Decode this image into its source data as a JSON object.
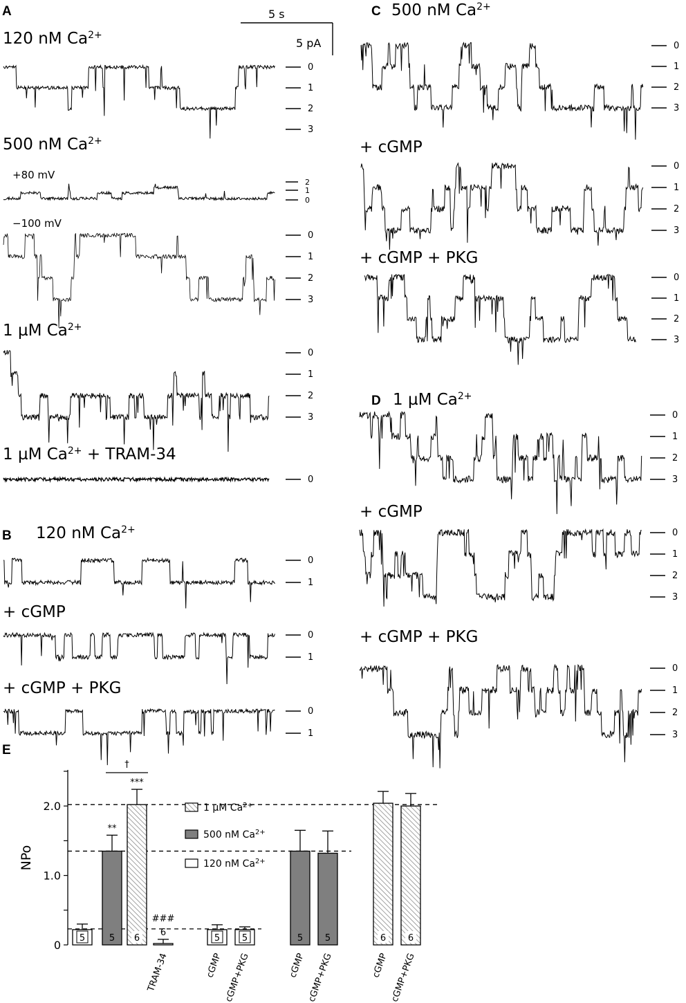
{
  "panels": {
    "A": {
      "letter": "A",
      "scale": {
        "time": "5 s",
        "current": "5 pA"
      },
      "rows": [
        {
          "label": "120 nM Ca",
          "sup": "2+",
          "levels": [
            "0",
            "1",
            "2",
            "3"
          ]
        },
        {
          "label": "500 nM Ca",
          "sup": "2+",
          "sub_rows": [
            {
              "voltage": "+80 mV",
              "levels": [
                "2",
                "1",
                "0"
              ]
            },
            {
              "voltage": "−100 mV",
              "levels": [
                "0",
                "1",
                "2",
                "3"
              ]
            }
          ]
        },
        {
          "label": "1 µM Ca",
          "sup": "2+",
          "levels": [
            "0",
            "1",
            "2",
            "3"
          ]
        },
        {
          "label": "1 µM Ca",
          "sup": "2+",
          "suffix": " + TRAM-34",
          "levels": [
            "0"
          ]
        }
      ]
    },
    "B": {
      "letter": "B",
      "rows": [
        {
          "label": "120 nM Ca",
          "sup": "2+",
          "levels": [
            "0",
            "1"
          ]
        },
        {
          "label": "+ cGMP",
          "levels": [
            "0",
            "1"
          ]
        },
        {
          "label": "+ cGMP + PKG",
          "levels": [
            "0",
            "1"
          ]
        }
      ]
    },
    "C": {
      "letter": "C",
      "rows": [
        {
          "label": "500 nM Ca",
          "sup": "2+",
          "levels": [
            "0",
            "1",
            "2",
            "3"
          ]
        },
        {
          "label": "+ cGMP",
          "levels": [
            "0",
            "1",
            "2",
            "3"
          ]
        },
        {
          "label": "+ cGMP + PKG",
          "levels": [
            "0",
            "1",
            "2",
            "3"
          ]
        }
      ]
    },
    "D": {
      "letter": "D",
      "rows": [
        {
          "label": "1 µM Ca",
          "sup": "2+",
          "levels": [
            "0",
            "1",
            "2",
            "3"
          ]
        },
        {
          "label": "+ cGMP",
          "levels": [
            "0",
            "1",
            "2",
            "3"
          ]
        },
        {
          "label": "+ cGMP + PKG",
          "levels": [
            "0",
            "1",
            "2",
            "3"
          ]
        }
      ]
    },
    "E": {
      "letter": "E"
    }
  },
  "chart_data": {
    "type": "bar",
    "ylabel": "NPo",
    "ylim": [
      0,
      2.5
    ],
    "yticks": [
      "0",
      "1.0",
      "2.0"
    ],
    "reference_lines": [
      0.23,
      1.35,
      2.02
    ],
    "legend": [
      {
        "label": "1 µM Ca",
        "sup": "2+",
        "pattern": "hatched"
      },
      {
        "label": "500 nM Ca",
        "sup": "2+",
        "pattern": "gray"
      },
      {
        "label": "120 nM Ca",
        "sup": "2+",
        "pattern": "white"
      }
    ],
    "bars": [
      {
        "category": "",
        "value": 0.22,
        "error": 0.08,
        "pattern": "white",
        "n": "5"
      },
      {
        "category": "",
        "value": 1.35,
        "error": 0.23,
        "pattern": "gray",
        "n": "5",
        "sig": "**"
      },
      {
        "category": "",
        "value": 2.02,
        "error": 0.22,
        "pattern": "hatched",
        "n": "6",
        "sig": "***"
      },
      {
        "category": "TRAM-34",
        "value": 0.02,
        "error": 0.06,
        "pattern": "white",
        "n": "6",
        "sig": "###"
      },
      {
        "category": "cGMP",
        "value": 0.22,
        "error": 0.07,
        "pattern": "white",
        "n": "5"
      },
      {
        "category": "cGMP+PKG",
        "value": 0.22,
        "error": 0.04,
        "pattern": "white",
        "n": "5"
      },
      {
        "category": "cGMP",
        "value": 1.35,
        "error": 0.3,
        "pattern": "gray",
        "n": "5"
      },
      {
        "category": "cGMP+PKG",
        "value": 1.32,
        "error": 0.32,
        "pattern": "gray",
        "n": "5"
      },
      {
        "category": "cGMP",
        "value": 2.04,
        "error": 0.17,
        "pattern": "hatched",
        "n": "6"
      },
      {
        "category": "cGMP+PKG",
        "value": 2.0,
        "error": 0.18,
        "pattern": "hatched",
        "n": "6"
      }
    ],
    "bracket": {
      "label": "†",
      "from_bar": 1,
      "to_bar": 2
    }
  },
  "colors": {
    "gray_bar": "#7f7f7f",
    "ink": "#000000"
  }
}
